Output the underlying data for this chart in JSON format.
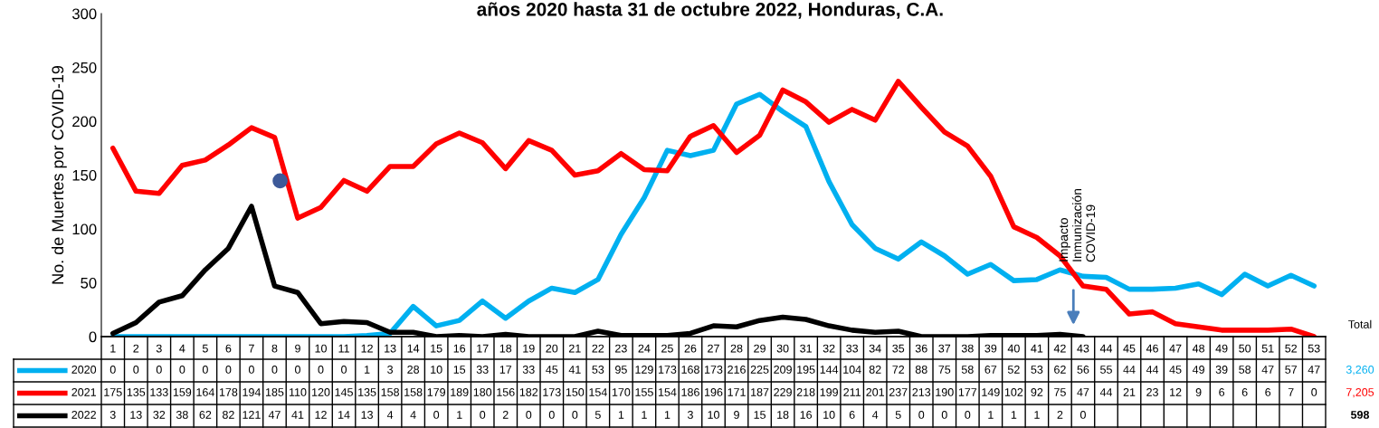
{
  "chart_data": {
    "type": "line",
    "title": "años 2020 hasta 31 de octubre 2022, Honduras, C.A.",
    "ylabel": "No. de Muertes por COVID-19",
    "categories": [
      "1",
      "2",
      "3",
      "4",
      "5",
      "6",
      "7",
      "8",
      "9",
      "10",
      "11",
      "12",
      "13",
      "14",
      "15",
      "16",
      "17",
      "18",
      "19",
      "20",
      "21",
      "22",
      "23",
      "24",
      "25",
      "26",
      "27",
      "28",
      "29",
      "30",
      "31",
      "32",
      "33",
      "34",
      "35",
      "36",
      "37",
      "38",
      "39",
      "40",
      "41",
      "42",
      "43",
      "44",
      "45",
      "46",
      "47",
      "48",
      "49",
      "50",
      "51",
      "52",
      "53"
    ],
    "series": [
      {
        "name": "2020",
        "color": "#00b0f0",
        "values": [
          0,
          0,
          0,
          0,
          0,
          0,
          0,
          0,
          0,
          0,
          0,
          1,
          3,
          28,
          10,
          15,
          33,
          17,
          33,
          45,
          41,
          53,
          95,
          129,
          173,
          168,
          173,
          216,
          225,
          209,
          195,
          144,
          104,
          82,
          72,
          88,
          75,
          58,
          67,
          52,
          53,
          62,
          56,
          55,
          44,
          44,
          45,
          49,
          39,
          58,
          47,
          57,
          47
        ]
      },
      {
        "name": "2021",
        "color": "#ff0000",
        "values": [
          175,
          135,
          133,
          159,
          164,
          178,
          194,
          185,
          110,
          120,
          145,
          135,
          158,
          158,
          179,
          189,
          180,
          156,
          182,
          173,
          150,
          154,
          170,
          155,
          154,
          186,
          196,
          171,
          187,
          229,
          218,
          199,
          211,
          201,
          237,
          213,
          190,
          177,
          149,
          102,
          92,
          75,
          47,
          44,
          21,
          23,
          12,
          9,
          6,
          6,
          6,
          7,
          0
        ]
      },
      {
        "name": "2022",
        "color": "#000000",
        "values": [
          3,
          13,
          32,
          38,
          62,
          82,
          121,
          47,
          41,
          12,
          14,
          13,
          4,
          4,
          0,
          1,
          0,
          2,
          0,
          0,
          0,
          5,
          1,
          1,
          1,
          3,
          10,
          9,
          15,
          18,
          16,
          10,
          6,
          4,
          5,
          0,
          0,
          0,
          1,
          1,
          1,
          2,
          0,
          null,
          null,
          null,
          null,
          null,
          null,
          null,
          null,
          null,
          null
        ]
      }
    ],
    "ylim": [
      0,
      300
    ],
    "yticks": [
      0,
      50,
      100,
      150,
      200,
      250,
      300
    ],
    "grid": false,
    "marker": "none",
    "line_style": "solid",
    "data_labels": true,
    "totals": [
      "3,260",
      "7,205",
      "598"
    ],
    "legend": "bottom",
    "annotations": [
      "Total",
      "Impacto\nInmunización\nCOVID-19"
    ]
  }
}
